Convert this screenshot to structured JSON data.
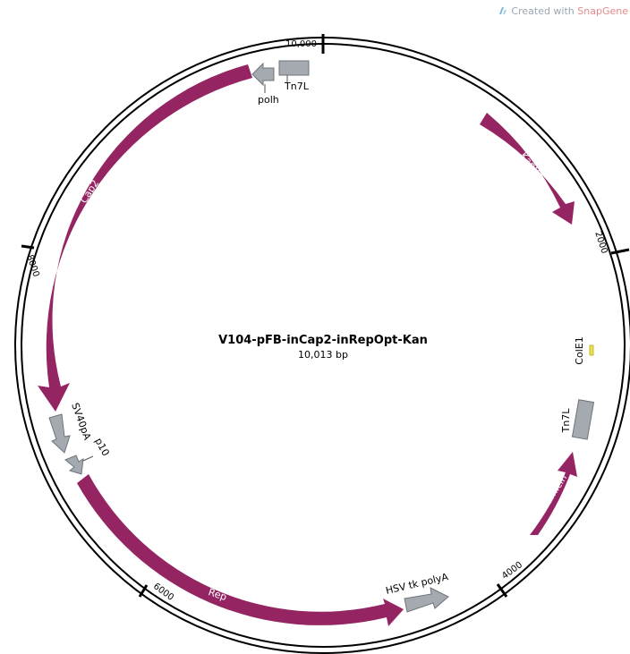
{
  "watermark": {
    "prefix": "Created with ",
    "brand": "SnapGene"
  },
  "map": {
    "title": "V104-pFB-inCap2-inRepOpt-Kan",
    "subtitle": "10,013 bp",
    "colors": {
      "cds": "#952463",
      "misc": "#a4aab0",
      "ori": "#e8e34a",
      "outline": "#000000"
    },
    "ticks": [
      {
        "label": "10,000"
      },
      {
        "label": "2000"
      },
      {
        "label": "4000"
      },
      {
        "label": "6000"
      },
      {
        "label": "8000"
      }
    ],
    "features": [
      {
        "id": "kanr",
        "label": "KanR",
        "type": "cds"
      },
      {
        "id": "cap2",
        "label": "Cap2",
        "type": "cds"
      },
      {
        "id": "rep",
        "label": "Rep",
        "type": "cds"
      },
      {
        "id": "gentamicin",
        "label": "Gentamicin",
        "type": "cds"
      },
      {
        "id": "tn7l-top",
        "label": "Tn7L",
        "type": "misc"
      },
      {
        "id": "tn7l-right",
        "label": "Tn7L",
        "type": "misc"
      },
      {
        "id": "polh",
        "label": "polh",
        "type": "misc"
      },
      {
        "id": "sv40pa",
        "label": "SV40pA",
        "type": "misc"
      },
      {
        "id": "p10",
        "label": "p10",
        "type": "misc"
      },
      {
        "id": "hsv-tk-polya",
        "label": "HSV tk polyA",
        "type": "misc"
      },
      {
        "id": "cole1",
        "label": "ColE1",
        "type": "ori"
      }
    ]
  }
}
